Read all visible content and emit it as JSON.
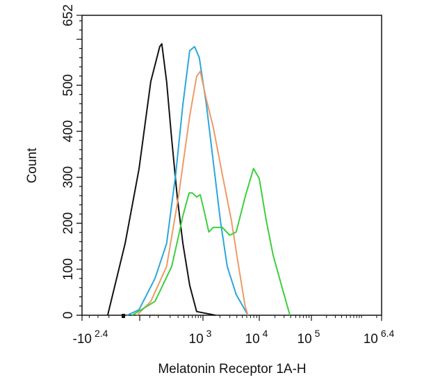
{
  "chart_data": {
    "type": "line",
    "title": "",
    "xlabel": "Melatonin Receptor 1A-H",
    "ylabel": "Count",
    "x_scale": "biexponential",
    "xlim": [
      -251,
      2511886
    ],
    "ylim": [
      0,
      652
    ],
    "grid": false,
    "legend": "none",
    "x_ticks": [
      {
        "value": -251,
        "base": "-10",
        "exp": "2.4"
      },
      {
        "value": 1000,
        "base": "10",
        "exp": "3"
      },
      {
        "value": 10000,
        "base": "10",
        "exp": "4"
      },
      {
        "value": 100000,
        "base": "10",
        "exp": "5"
      },
      {
        "value": 2511886,
        "base": "10",
        "exp": "6.4"
      }
    ],
    "y_ticks": [
      {
        "value": 0,
        "label": "0"
      },
      {
        "value": 100,
        "label": "100"
      },
      {
        "value": 200,
        "label": "200"
      },
      {
        "value": 300,
        "label": "300"
      },
      {
        "value": 400,
        "label": "400"
      },
      {
        "value": 500,
        "label": "500"
      },
      {
        "value": 652,
        "label": "652"
      }
    ],
    "series": [
      {
        "color": "#111111",
        "points": [
          [
            -105,
            0
          ],
          [
            -43,
            156
          ],
          [
            -2,
            318
          ],
          [
            55,
            508
          ],
          [
            110,
            584
          ],
          [
            125,
            590
          ],
          [
            165,
            508
          ],
          [
            217,
            383
          ],
          [
            288,
            257
          ],
          [
            380,
            156
          ],
          [
            530,
            65
          ],
          [
            740,
            8
          ],
          [
            1670,
            0
          ]
        ]
      },
      {
        "color": "#2aa6dc",
        "points": [
          [
            -37,
            0
          ],
          [
            -2,
            12
          ],
          [
            79,
            80
          ],
          [
            165,
            156
          ],
          [
            266,
            307
          ],
          [
            380,
            458
          ],
          [
            530,
            575
          ],
          [
            670,
            584
          ],
          [
            840,
            560
          ],
          [
            1150,
            458
          ],
          [
            1530,
            333
          ],
          [
            2040,
            206
          ],
          [
            2700,
            106
          ],
          [
            3900,
            45
          ],
          [
            6300,
            0
          ]
        ]
      },
      {
        "color": "#ee9a66",
        "points": [
          [
            -8,
            0
          ],
          [
            55,
            30
          ],
          [
            165,
            106
          ],
          [
            305,
            257
          ],
          [
            530,
            433
          ],
          [
            740,
            519
          ],
          [
            880,
            530
          ],
          [
            1150,
            469
          ],
          [
            1530,
            408
          ],
          [
            2200,
            307
          ],
          [
            3200,
            206
          ],
          [
            4300,
            106
          ],
          [
            5600,
            20
          ],
          [
            6300,
            0
          ]
        ]
      },
      {
        "color": "#3ccf3c",
        "points": [
          [
            -22,
            0
          ],
          [
            79,
            30
          ],
          [
            217,
            106
          ],
          [
            305,
            171
          ],
          [
            380,
            216
          ],
          [
            515,
            266
          ],
          [
            600,
            266
          ],
          [
            740,
            257
          ],
          [
            880,
            262
          ],
          [
            1030,
            231
          ],
          [
            1270,
            181
          ],
          [
            1530,
            191
          ],
          [
            2200,
            191
          ],
          [
            2980,
            174
          ],
          [
            3900,
            181
          ],
          [
            5600,
            257
          ],
          [
            7900,
            319
          ],
          [
            10000,
            297
          ],
          [
            13600,
            206
          ],
          [
            18500,
            130
          ],
          [
            28400,
            54
          ],
          [
            38700,
            0
          ]
        ]
      }
    ]
  }
}
